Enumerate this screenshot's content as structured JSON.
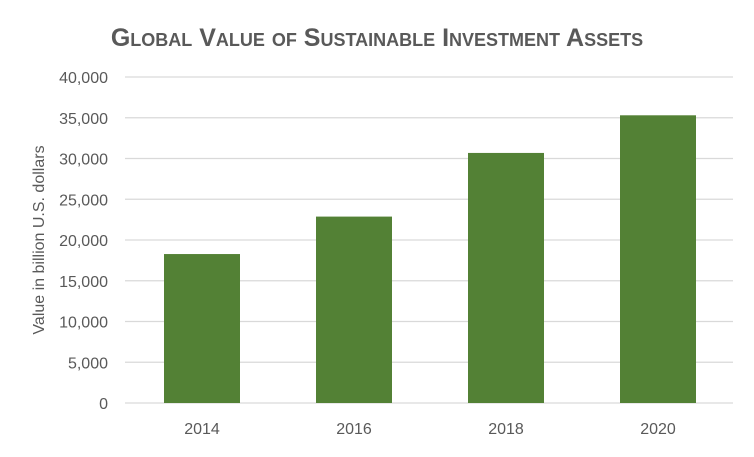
{
  "chart_data": {
    "type": "bar",
    "title": "Global Value of Sustainable Investment Assets",
    "xlabel": "",
    "ylabel": "Value in billion U.S. dollars",
    "categories": [
      "2014",
      "2016",
      "2018",
      "2020"
    ],
    "values": [
      18276,
      22872,
      30683,
      35301
    ],
    "ylim": [
      0,
      40000
    ],
    "yticks": [
      0,
      5000,
      10000,
      15000,
      20000,
      25000,
      30000,
      35000,
      40000
    ],
    "ytick_labels": [
      "0",
      "5,000",
      "10,000",
      "15,000",
      "20,000",
      "25,000",
      "30,000",
      "35,000",
      "40,000"
    ],
    "grid": true,
    "legend": "none",
    "bar_color": "#538135",
    "grid_color": "#d9d9d9"
  }
}
